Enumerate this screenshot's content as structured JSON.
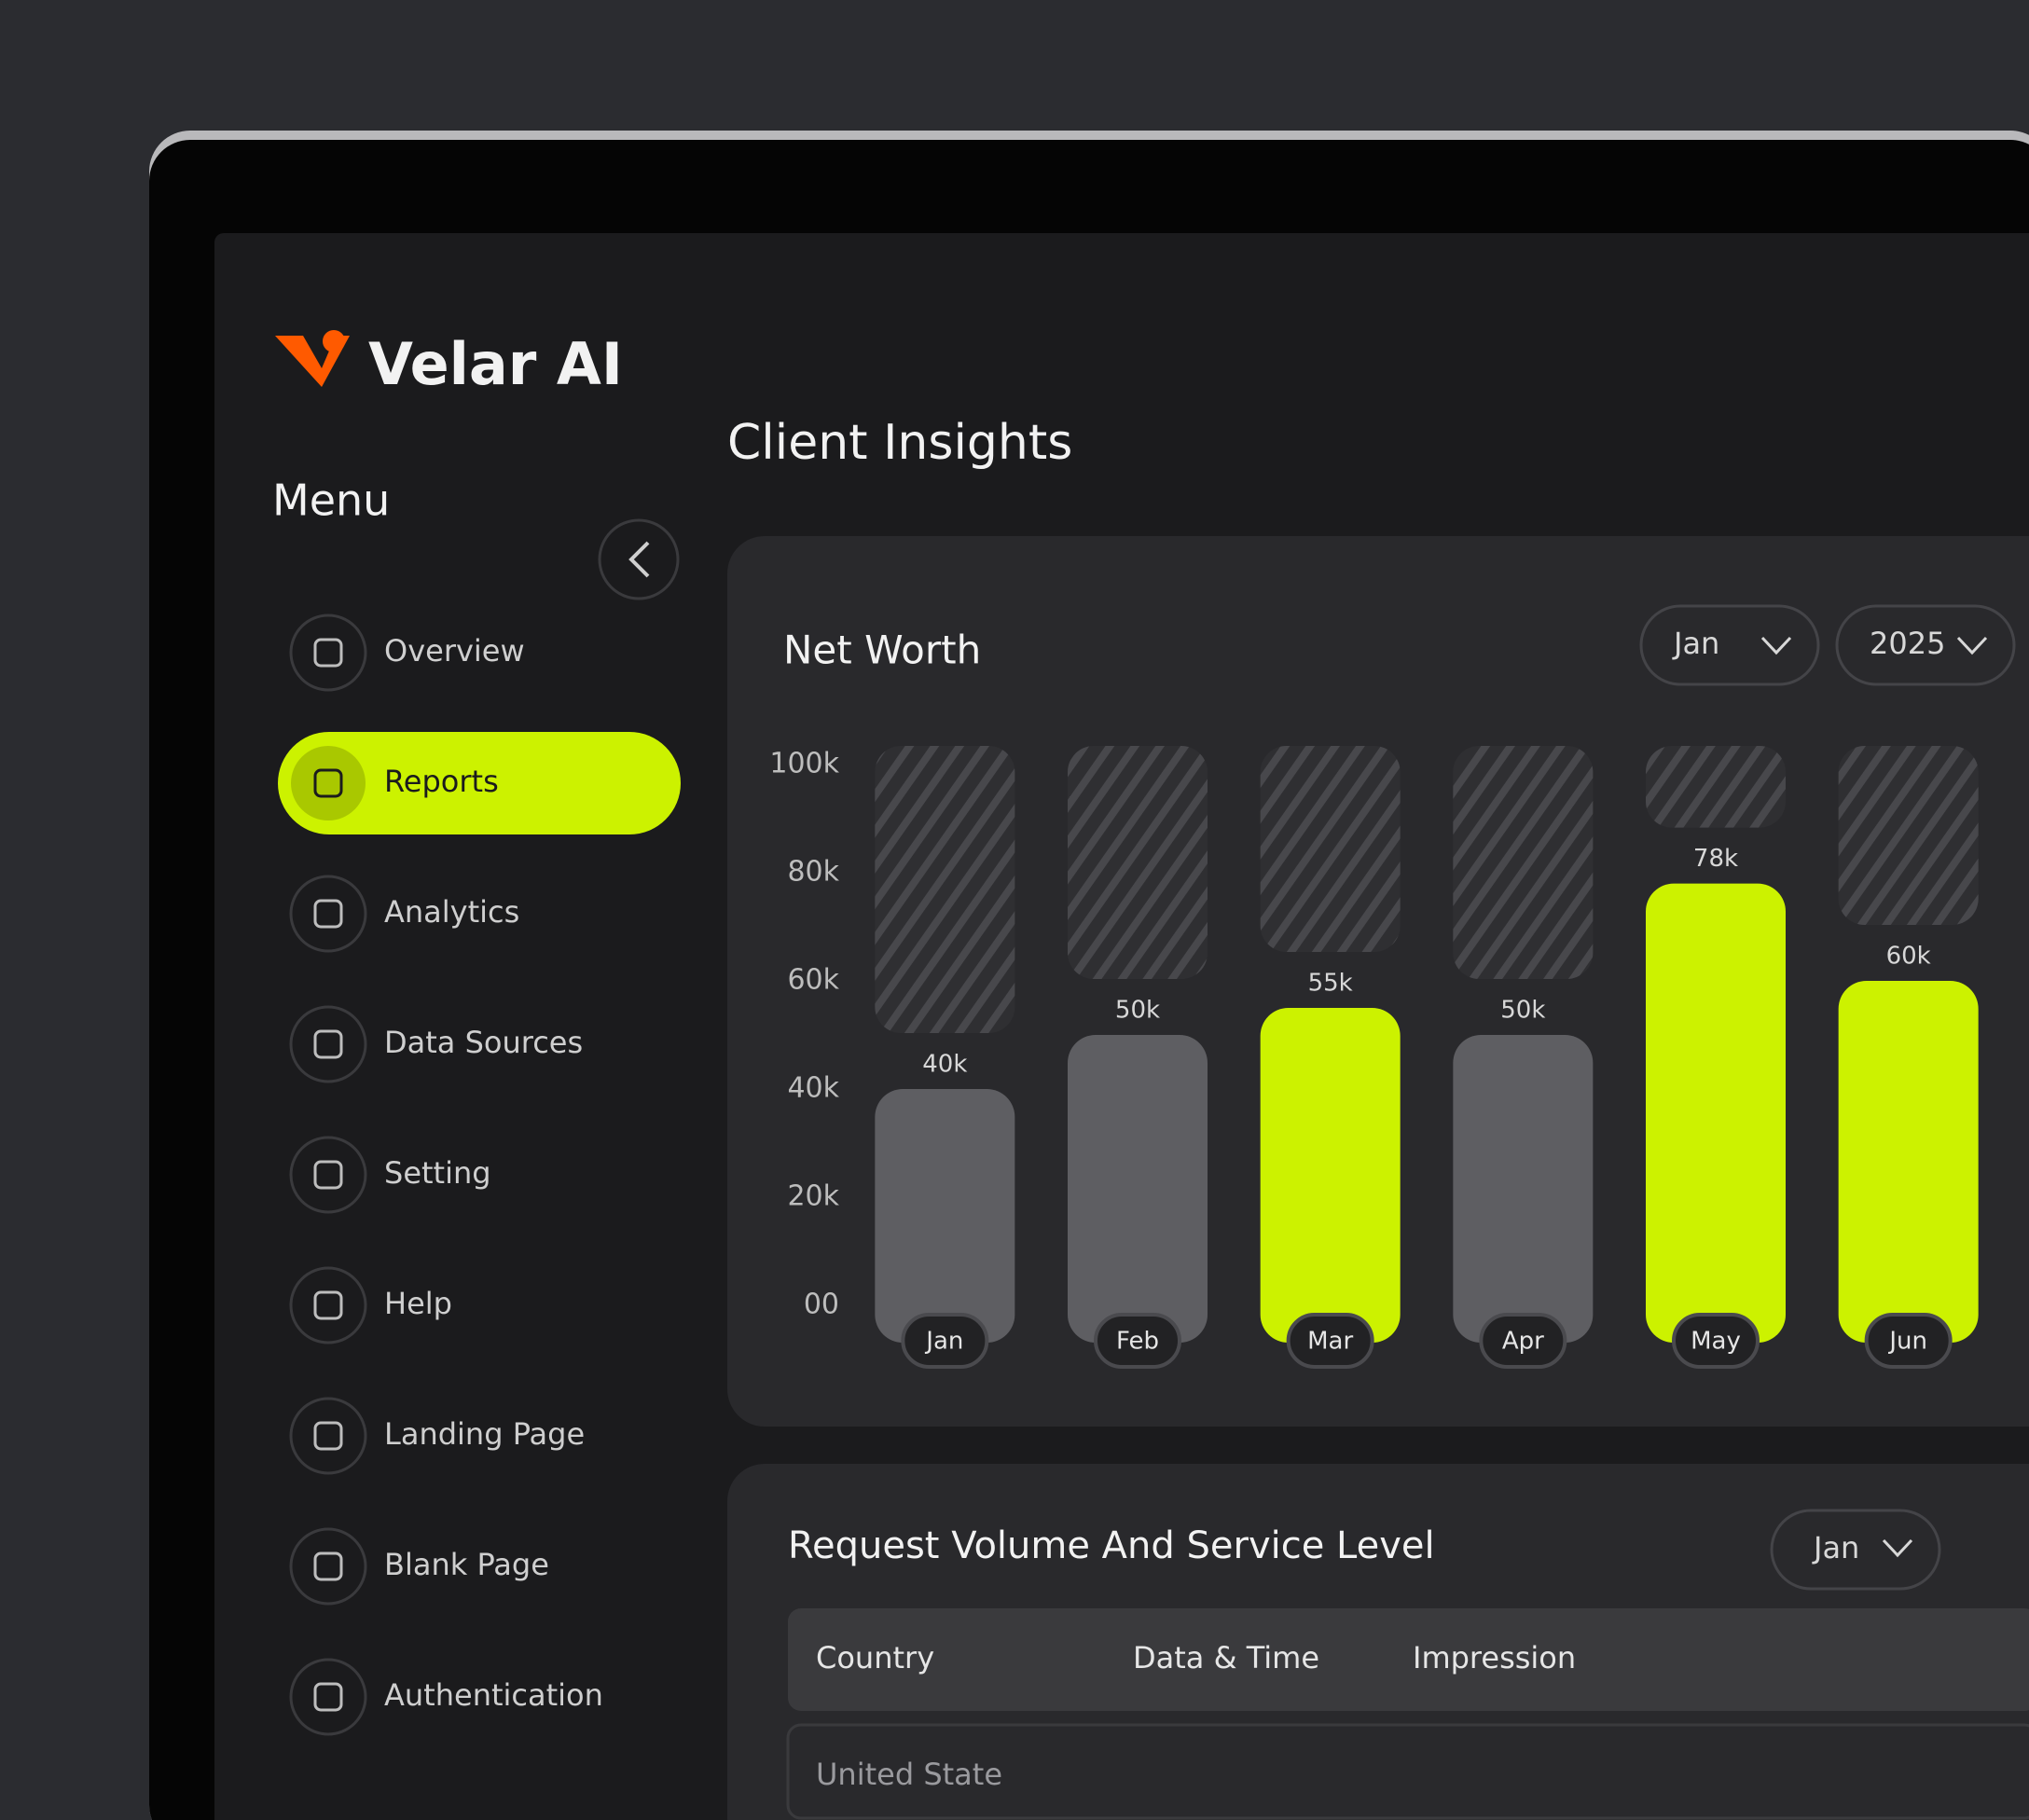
{
  "sidebar": {
    "brand": "Velar AI",
    "menu_title": "Menu",
    "items": [
      "Overview",
      "Reports",
      "Analytics",
      "Data Sources",
      "Setting",
      "Help",
      "Landing Page",
      "Blank Page",
      "Authentication"
    ],
    "active": 1
  },
  "page_title": "Client Insights",
  "chart_data": {
    "type": "bar",
    "title": "Net Worth",
    "filters": [
      "Jan",
      "2025"
    ],
    "categories": [
      "Jan",
      "Feb",
      "Mar",
      "Apr",
      "May",
      "Jun"
    ],
    "values": [
      40000,
      50000,
      55000,
      50000,
      78000,
      60000
    ],
    "value_labels": [
      "40k",
      "50k",
      "55k",
      "50k",
      "78k",
      "60k"
    ],
    "colors": [
      "#5e5e62",
      "#5e5e62",
      "#ccf200",
      "#5e5e62",
      "#ccf200",
      "#ccf200"
    ],
    "ylim": [
      0,
      100000
    ],
    "yticks": [
      {
        "value": 0,
        "label": "00"
      },
      {
        "value": 20000,
        "label": "20k"
      },
      {
        "value": 40000,
        "label": "40k"
      },
      {
        "value": 60000,
        "label": "60k"
      },
      {
        "value": 80000,
        "label": "80k"
      },
      {
        "value": 100000,
        "label": "100k"
      }
    ]
  },
  "table": {
    "title": "Request Volume And Service Level",
    "filter": "Jan",
    "headers": [
      "Country",
      "Data & Time",
      "Impression"
    ],
    "rows": [
      [
        "United State"
      ]
    ]
  }
}
